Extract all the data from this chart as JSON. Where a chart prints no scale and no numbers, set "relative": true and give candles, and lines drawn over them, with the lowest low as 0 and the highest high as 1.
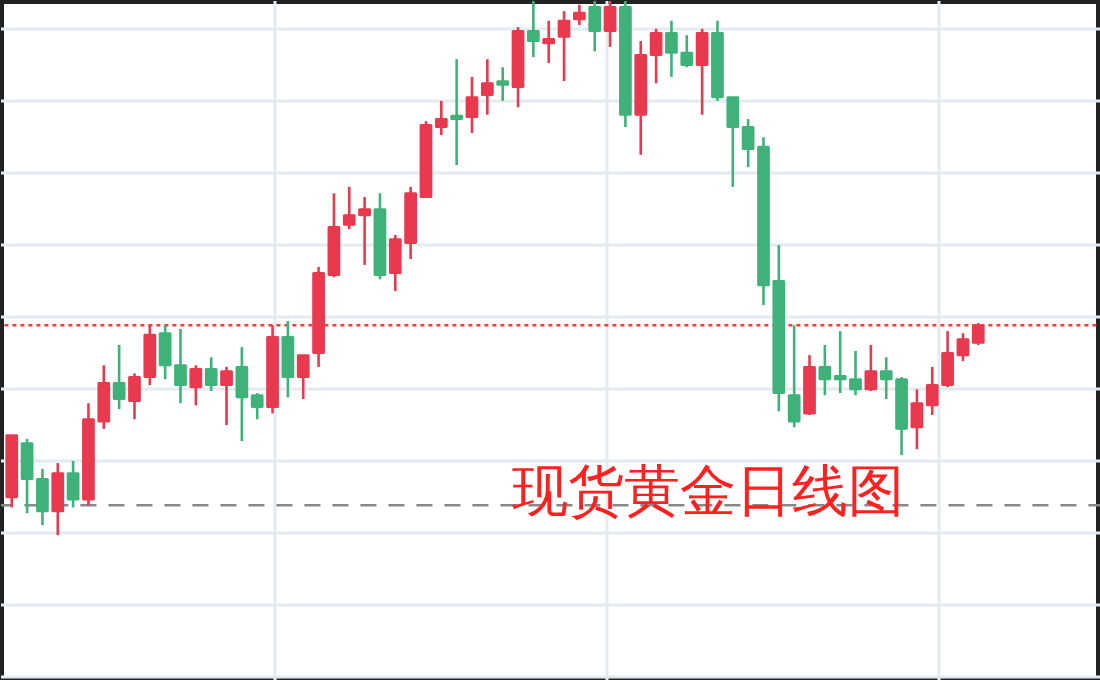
{
  "chart_data": {
    "type": "candlestick",
    "relative": true,
    "grid": true,
    "categories": [
      null,
      null,
      null,
      null,
      null,
      null,
      null,
      null,
      null,
      null,
      null,
      null,
      null,
      null,
      null,
      null,
      null,
      null,
      null,
      null,
      null,
      null,
      null,
      null,
      null,
      null,
      null,
      null,
      null,
      null,
      null,
      null,
      null,
      null,
      null,
      null,
      null,
      null,
      null,
      null,
      null,
      null,
      null,
      null,
      null,
      null,
      null,
      null,
      null,
      null,
      null,
      null,
      null,
      null,
      null,
      null,
      null,
      null,
      null,
      null,
      null,
      null,
      null,
      null
    ],
    "ohlc": [
      [
        0.071,
        0.187,
        0.052,
        0.187
      ],
      [
        0.172,
        0.18,
        0.041,
        0.105
      ],
      [
        0.105,
        0.124,
        0.019,
        0.045
      ],
      [
        0.045,
        0.135,
        0.0,
        0.116
      ],
      [
        0.116,
        0.139,
        0.052,
        0.067
      ],
      [
        0.067,
        0.247,
        0.056,
        0.217
      ],
      [
        0.213,
        0.318,
        0.199,
        0.285
      ],
      [
        0.285,
        0.356,
        0.236,
        0.255
      ],
      [
        0.251,
        0.303,
        0.217,
        0.296
      ],
      [
        0.296,
        0.393,
        0.281,
        0.375
      ],
      [
        0.378,
        0.393,
        0.292,
        0.318
      ],
      [
        0.318,
        0.386,
        0.247,
        0.281
      ],
      [
        0.277,
        0.318,
        0.243,
        0.311
      ],
      [
        0.311,
        0.333,
        0.27,
        0.281
      ],
      [
        0.281,
        0.315,
        0.206,
        0.307
      ],
      [
        0.315,
        0.352,
        0.176,
        0.258
      ],
      [
        0.262,
        0.266,
        0.217,
        0.24
      ],
      [
        0.24,
        0.393,
        0.228,
        0.371
      ],
      [
        0.371,
        0.401,
        0.258,
        0.296
      ],
      [
        0.296,
        0.337,
        0.255,
        0.337
      ],
      [
        0.341,
        0.502,
        0.315,
        0.491
      ],
      [
        0.487,
        0.64,
        0.483,
        0.577
      ],
      [
        0.581,
        0.652,
        0.573,
        0.599
      ],
      [
        0.599,
        0.633,
        0.506,
        0.61
      ],
      [
        0.61,
        0.64,
        0.479,
        0.487
      ],
      [
        0.491,
        0.562,
        0.457,
        0.554
      ],
      [
        0.547,
        0.652,
        0.517,
        0.64
      ],
      [
        0.633,
        0.775,
        0.633,
        0.768
      ],
      [
        0.764,
        0.813,
        0.749,
        0.779
      ],
      [
        0.783,
        0.891,
        0.693,
        0.779
      ],
      [
        0.783,
        0.858,
        0.753,
        0.82
      ],
      [
        0.824,
        0.891,
        0.787,
        0.846
      ],
      [
        0.85,
        0.876,
        0.813,
        0.843
      ],
      [
        0.839,
        0.951,
        0.801,
        0.944
      ],
      [
        0.944,
        1.0,
        0.895,
        0.925
      ],
      [
        0.921,
        0.963,
        0.884,
        0.929
      ],
      [
        0.933,
        0.981,
        0.85,
        0.963
      ],
      [
        0.966,
        0.993,
        0.955,
        0.978
      ],
      [
        0.989,
        1.0,
        0.906,
        0.944
      ],
      [
        0.944,
        1.0,
        0.914,
        0.989
      ],
      [
        0.989,
        1.0,
        0.764,
        0.787
      ],
      [
        0.787,
        0.925,
        0.712,
        0.899
      ],
      [
        0.899,
        0.948,
        0.846,
        0.94
      ],
      [
        0.94,
        0.963,
        0.858,
        0.903
      ],
      [
        0.903,
        0.936,
        0.876,
        0.88
      ],
      [
        0.88,
        0.948,
        0.787,
        0.94
      ],
      [
        0.94,
        0.963,
        0.813,
        0.82
      ],
      [
        0.82,
        0.82,
        0.652,
        0.764
      ],
      [
        0.764,
        0.779,
        0.689,
        0.723
      ],
      [
        0.727,
        0.745,
        0.431,
        0.468
      ],
      [
        0.476,
        0.543,
        0.232,
        0.266
      ],
      [
        0.262,
        0.393,
        0.202,
        0.213
      ],
      [
        0.228,
        0.337,
        0.225,
        0.315
      ],
      [
        0.315,
        0.356,
        0.262,
        0.292
      ],
      [
        0.296,
        0.382,
        0.266,
        0.292
      ],
      [
        0.292,
        0.345,
        0.262,
        0.273
      ],
      [
        0.273,
        0.356,
        0.27,
        0.307
      ],
      [
        0.307,
        0.333,
        0.255,
        0.292
      ],
      [
        0.292,
        0.296,
        0.15,
        0.199
      ],
      [
        0.202,
        0.273,
        0.161,
        0.247
      ],
      [
        0.243,
        0.315,
        0.225,
        0.281
      ],
      [
        0.281,
        0.382,
        0.277,
        0.341
      ],
      [
        0.337,
        0.378,
        0.326,
        0.367
      ],
      [
        0.36,
        0.397,
        0.356,
        0.393
      ]
    ],
    "colors": [
      "#e8394f",
      "#3fb27a",
      "#3fb27a",
      "#e8394f",
      "#3fb27a",
      "#e8394f",
      "#e8394f",
      "#3fb27a",
      "#e8394f",
      "#e8394f",
      "#3fb27a",
      "#3fb27a",
      "#e8394f",
      "#3fb27a",
      "#e8394f",
      "#3fb27a",
      "#3fb27a",
      "#e8394f",
      "#3fb27a",
      "#e8394f",
      "#e8394f",
      "#e8394f",
      "#e8394f",
      "#e8394f",
      "#3fb27a",
      "#e8394f",
      "#e8394f",
      "#e8394f",
      "#e8394f",
      "#3fb27a",
      "#e8394f",
      "#e8394f",
      "#3fb27a",
      "#e8394f",
      "#3fb27a",
      "#e8394f",
      "#e8394f",
      "#e8394f",
      "#3fb27a",
      "#e8394f",
      "#3fb27a",
      "#e8394f",
      "#e8394f",
      "#3fb27a",
      "#3fb27a",
      "#e8394f",
      "#3fb27a",
      "#3fb27a",
      "#3fb27a",
      "#3fb27a",
      "#3fb27a",
      "#3fb27a",
      "#e8394f",
      "#3fb27a",
      "#3fb27a",
      "#3fb27a",
      "#e8394f",
      "#3fb27a",
      "#3fb27a",
      "#e8394f",
      "#e8394f",
      "#e8394f",
      "#e8394f",
      "#e8394f"
    ],
    "ref_lines": [
      {
        "axis": "y",
        "value": 0.393,
        "color": "#f03c3c",
        "line_style": "dotted"
      },
      {
        "axis": "y",
        "value": 0.056,
        "color": "#888888",
        "line_style": "dashed"
      }
    ],
    "annotations": [
      "现货黄金日线图"
    ]
  }
}
